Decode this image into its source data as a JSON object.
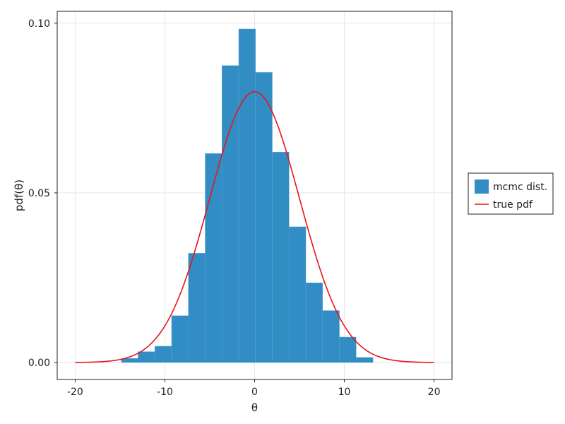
{
  "chart_data": {
    "type": "bar",
    "xlabel": "θ",
    "ylabel": "pdf(θ)",
    "xlim": [
      -22,
      22
    ],
    "ylim": [
      -0.005,
      0.1035
    ],
    "xticks": [
      -20,
      -10,
      0,
      10,
      20
    ],
    "xtick_labels": [
      "-20",
      "-10",
      "0",
      "10",
      "20"
    ],
    "yticks": [
      0.0,
      0.05,
      0.1
    ],
    "ytick_labels": [
      "0.00",
      "0.05",
      "0.10"
    ],
    "grid": true,
    "legend_position": "right",
    "series": [
      {
        "name": "mcmc dist.",
        "kind": "histogram",
        "color": "#338dc5",
        "bin_width": 1.87,
        "bins": [
          {
            "x0": -14.86,
            "value": 0.0012
          },
          {
            "x0": -12.99,
            "value": 0.0032
          },
          {
            "x0": -11.12,
            "value": 0.0048
          },
          {
            "x0": -9.25,
            "value": 0.0138
          },
          {
            "x0": -7.38,
            "value": 0.0322
          },
          {
            "x0": -5.51,
            "value": 0.0616
          },
          {
            "x0": -3.64,
            "value": 0.0875
          },
          {
            "x0": -1.77,
            "value": 0.0983
          },
          {
            "x0": 0.1,
            "value": 0.0855
          },
          {
            "x0": 1.97,
            "value": 0.062
          },
          {
            "x0": 3.84,
            "value": 0.04
          },
          {
            "x0": 5.71,
            "value": 0.0235
          },
          {
            "x0": 7.58,
            "value": 0.0153
          },
          {
            "x0": 9.45,
            "value": 0.0075
          },
          {
            "x0": 11.32,
            "value": 0.0015
          }
        ]
      },
      {
        "name": "true pdf",
        "kind": "line",
        "color": "#e8141c",
        "curve": {
          "family": "normal",
          "mean": 0,
          "sd": 5,
          "x_range": [
            -20,
            20
          ]
        }
      }
    ]
  }
}
